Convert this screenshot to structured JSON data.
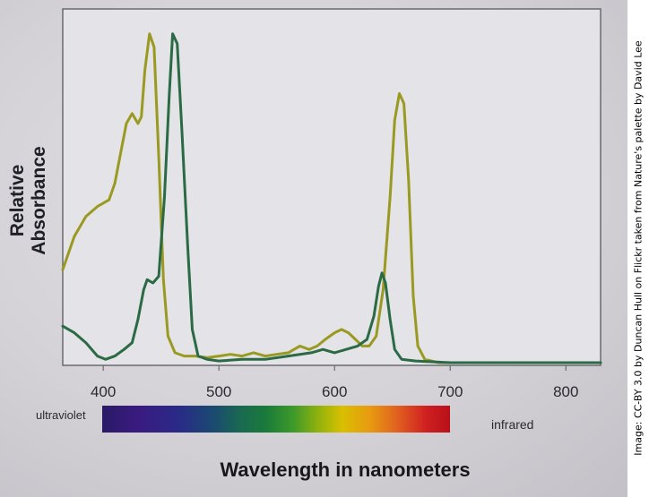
{
  "credit": "Image: CC-BY 3.0 by Duncan Hull on Flickr taken from Nature's palette by David Lee",
  "spectrum": {
    "left_label": "ultraviolet",
    "right_label": "infrared"
  },
  "chart_data": {
    "type": "line",
    "title": "",
    "xlabel": "Wavelength in nanometers",
    "ylabel": "Relative Absorbance",
    "xlim": [
      365,
      830
    ],
    "ylim": [
      0,
      1.0
    ],
    "xticks": [
      400,
      500,
      600,
      700,
      800
    ],
    "grid": false,
    "legend": "none",
    "series": [
      {
        "color": "#9a9a22",
        "points": [
          [
            365,
            0.28
          ],
          [
            375,
            0.38
          ],
          [
            385,
            0.44
          ],
          [
            395,
            0.47
          ],
          [
            405,
            0.49
          ],
          [
            410,
            0.54
          ],
          [
            415,
            0.63
          ],
          [
            420,
            0.72
          ],
          [
            425,
            0.75
          ],
          [
            430,
            0.72
          ],
          [
            433,
            0.74
          ],
          [
            436,
            0.88
          ],
          [
            440,
            0.99
          ],
          [
            444,
            0.95
          ],
          [
            448,
            0.62
          ],
          [
            452,
            0.25
          ],
          [
            456,
            0.08
          ],
          [
            462,
            0.03
          ],
          [
            470,
            0.02
          ],
          [
            480,
            0.02
          ],
          [
            490,
            0.015
          ],
          [
            500,
            0.02
          ],
          [
            510,
            0.025
          ],
          [
            520,
            0.02
          ],
          [
            530,
            0.03
          ],
          [
            540,
            0.02
          ],
          [
            550,
            0.025
          ],
          [
            560,
            0.03
          ],
          [
            570,
            0.05
          ],
          [
            578,
            0.04
          ],
          [
            585,
            0.05
          ],
          [
            592,
            0.07
          ],
          [
            600,
            0.09
          ],
          [
            606,
            0.1
          ],
          [
            612,
            0.09
          ],
          [
            618,
            0.07
          ],
          [
            624,
            0.05
          ],
          [
            630,
            0.05
          ],
          [
            636,
            0.08
          ],
          [
            642,
            0.22
          ],
          [
            648,
            0.5
          ],
          [
            652,
            0.73
          ],
          [
            656,
            0.81
          ],
          [
            660,
            0.78
          ],
          [
            664,
            0.55
          ],
          [
            668,
            0.2
          ],
          [
            672,
            0.05
          ],
          [
            678,
            0.01
          ],
          [
            690,
            0.0
          ],
          [
            720,
            0.0
          ],
          [
            760,
            0.0
          ],
          [
            800,
            0.0
          ],
          [
            830,
            0.0
          ]
        ]
      },
      {
        "color": "#2a6a44",
        "points": [
          [
            365,
            0.11
          ],
          [
            375,
            0.09
          ],
          [
            385,
            0.06
          ],
          [
            395,
            0.02
          ],
          [
            402,
            0.01
          ],
          [
            410,
            0.02
          ],
          [
            418,
            0.04
          ],
          [
            425,
            0.06
          ],
          [
            430,
            0.13
          ],
          [
            435,
            0.22
          ],
          [
            438,
            0.25
          ],
          [
            443,
            0.24
          ],
          [
            448,
            0.26
          ],
          [
            453,
            0.5
          ],
          [
            457,
            0.8
          ],
          [
            460,
            0.99
          ],
          [
            464,
            0.96
          ],
          [
            468,
            0.7
          ],
          [
            473,
            0.35
          ],
          [
            477,
            0.1
          ],
          [
            482,
            0.02
          ],
          [
            490,
            0.01
          ],
          [
            500,
            0.005
          ],
          [
            520,
            0.01
          ],
          [
            540,
            0.01
          ],
          [
            560,
            0.02
          ],
          [
            580,
            0.03
          ],
          [
            590,
            0.04
          ],
          [
            600,
            0.03
          ],
          [
            610,
            0.04
          ],
          [
            620,
            0.05
          ],
          [
            628,
            0.07
          ],
          [
            634,
            0.14
          ],
          [
            638,
            0.23
          ],
          [
            641,
            0.27
          ],
          [
            644,
            0.24
          ],
          [
            648,
            0.13
          ],
          [
            652,
            0.04
          ],
          [
            658,
            0.01
          ],
          [
            670,
            0.005
          ],
          [
            700,
            0.0
          ],
          [
            760,
            0.0
          ],
          [
            800,
            0.0
          ],
          [
            830,
            0.0
          ]
        ]
      }
    ]
  }
}
